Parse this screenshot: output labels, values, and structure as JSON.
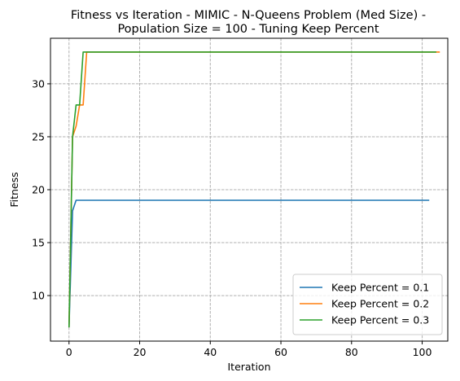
{
  "chart_data": {
    "type": "line",
    "title": [
      "Fitness vs Iteration - MIMIC - N-Queens Problem (Med Size) -",
      "Population Size = 100 - Tuning Keep Percent"
    ],
    "xlabel": "Iteration",
    "ylabel": "Fitness",
    "xlim": [
      -5.25,
      107.25
    ],
    "ylim": [
      5.7,
      34.3
    ],
    "xticks": [
      0,
      20,
      40,
      60,
      80,
      100
    ],
    "yticks": [
      10,
      15,
      20,
      25,
      30
    ],
    "grid": true,
    "legend_position": "lower-right",
    "series": [
      {
        "name": "Keep Percent = 0.1",
        "color": "#1f77b4",
        "x": [
          0,
          1,
          2,
          102
        ],
        "y": [
          7,
          18,
          19,
          19
        ]
      },
      {
        "name": "Keep Percent = 0.2",
        "color": "#ff7f0e",
        "x": [
          0,
          1,
          2,
          3,
          4,
          5,
          105
        ],
        "y": [
          7,
          25,
          26,
          28,
          28,
          33,
          33
        ]
      },
      {
        "name": "Keep Percent = 0.3",
        "color": "#2ca02c",
        "x": [
          0,
          1,
          2,
          3,
          4,
          104
        ],
        "y": [
          7,
          25,
          28,
          28,
          33,
          33
        ]
      }
    ]
  }
}
